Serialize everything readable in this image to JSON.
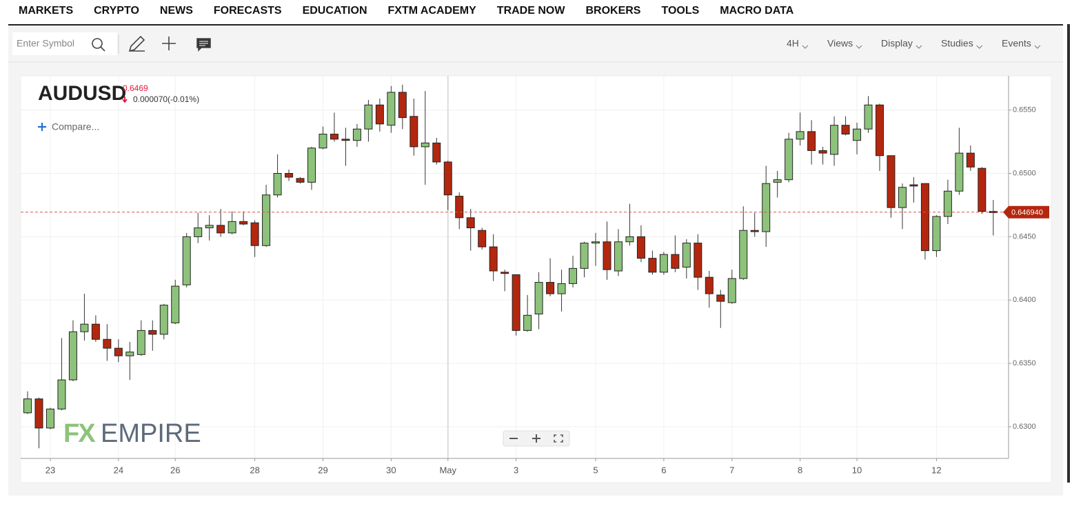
{
  "nav": {
    "items": [
      "MARKETS",
      "CRYPTO",
      "NEWS",
      "FORECASTS",
      "EDUCATION",
      "FXTM ACADEMY",
      "TRADE NOW",
      "BROKERS",
      "TOOLS",
      "MACRO DATA"
    ]
  },
  "toolbar": {
    "symbol_placeholder": "Enter Symbol",
    "menus": [
      "4H",
      "Views",
      "Display",
      "Studies",
      "Events"
    ]
  },
  "chart_data": {
    "type": "candlestick",
    "symbol": "AUDUSD",
    "price": "0.6469",
    "change": "0.000070(-0.01%)",
    "compare": "Compare...",
    "watermark": [
      "FX",
      "EMPIRE"
    ],
    "categories": [
      null,
      null,
      "23",
      null,
      null,
      null,
      null,
      null,
      "24",
      null,
      null,
      null,
      null,
      "26",
      null,
      null,
      null,
      null,
      null,
      null,
      "28",
      null,
      null,
      null,
      null,
      null,
      "29",
      null,
      null,
      null,
      null,
      null,
      "30",
      null,
      null,
      null,
      null,
      "May",
      null,
      null,
      null,
      null,
      null,
      "3",
      null,
      null,
      null,
      null,
      null,
      null,
      "5",
      null,
      null,
      null,
      null,
      null,
      "6",
      null,
      null,
      null,
      null,
      null,
      "7",
      null,
      null,
      null,
      null,
      null,
      "8",
      null,
      null,
      null,
      null,
      "10",
      null,
      null,
      null,
      null,
      null,
      null,
      "12",
      null,
      null,
      null,
      null,
      null
    ],
    "open": [
      0.6311,
      0.6322,
      0.6299,
      0.6314,
      0.6337,
      0.6375,
      0.6381,
      0.6369,
      0.6362,
      0.6356,
      0.6357,
      0.6376,
      0.6373,
      0.6382,
      0.6412,
      0.645,
      0.6457,
      0.6459,
      0.6453,
      0.6462,
      0.6461,
      0.6443,
      0.6483,
      0.65,
      0.6496,
      0.6493,
      0.652,
      0.6531,
      0.6527,
      0.6526,
      0.6535,
      0.6554,
      0.6538,
      0.6564,
      0.6545,
      0.6521,
      0.6524,
      0.6509,
      0.6482,
      0.6465,
      0.6455,
      0.6442,
      0.6422,
      0.642,
      0.6376,
      0.6389,
      0.6414,
      0.6405,
      0.6413,
      0.6425,
      0.6445,
      0.6446,
      0.6423,
      0.6446,
      0.645,
      0.6433,
      0.6422,
      0.6436,
      0.6426,
      0.6445,
      0.6418,
      0.6404,
      0.6398,
      0.6417,
      0.6455,
      0.6454,
      0.6493,
      0.6495,
      0.6527,
      0.6533,
      0.6518,
      0.6515,
      0.6538,
      0.6526,
      0.6535,
      0.6554,
      0.6514,
      0.6473,
      0.6491,
      0.6492,
      0.6439,
      0.6466,
      0.6486,
      0.6516,
      0.6504,
      0.647
    ],
    "high": [
      0.6328,
      0.6323,
      0.6315,
      0.637,
      0.6384,
      0.6405,
      0.6388,
      0.6381,
      0.6369,
      0.6367,
      0.6384,
      0.6384,
      0.6397,
      0.6416,
      0.6453,
      0.6469,
      0.6467,
      0.6472,
      0.647,
      0.647,
      0.6463,
      0.6491,
      0.6515,
      0.6503,
      0.6497,
      0.6521,
      0.6537,
      0.6548,
      0.6536,
      0.6539,
      0.6558,
      0.6559,
      0.6569,
      0.657,
      0.6559,
      0.6565,
      0.6528,
      0.651,
      0.6485,
      0.6472,
      0.6457,
      0.6452,
      0.6424,
      0.642,
      0.6404,
      0.6422,
      0.6433,
      0.6424,
      0.6435,
      0.6446,
      0.6453,
      0.6462,
      0.6456,
      0.6476,
      0.6459,
      0.6439,
      0.6438,
      0.6451,
      0.6448,
      0.6452,
      0.6423,
      0.6408,
      0.6424,
      0.6474,
      0.6469,
      0.6506,
      0.6502,
      0.6532,
      0.6548,
      0.6542,
      0.6521,
      0.6545,
      0.6545,
      0.654,
      0.6561,
      0.6555,
      0.6514,
      0.6492,
      0.6497,
      0.6492,
      0.6467,
      0.6495,
      0.6536,
      0.6522,
      0.6505,
      0.6479
    ],
    "low": [
      0.631,
      0.6283,
      0.6298,
      0.6313,
      0.6336,
      0.6368,
      0.6367,
      0.6352,
      0.6351,
      0.6337,
      0.6356,
      0.636,
      0.6369,
      0.6381,
      0.641,
      0.6445,
      0.6447,
      0.645,
      0.6452,
      0.6459,
      0.6434,
      0.6442,
      0.6481,
      0.6494,
      0.6492,
      0.6487,
      0.6519,
      0.6525,
      0.6506,
      0.6521,
      0.6525,
      0.6533,
      0.6532,
      0.6535,
      0.6514,
      0.6491,
      0.6507,
      0.6471,
      0.6456,
      0.6439,
      0.644,
      0.6415,
      0.6407,
      0.6372,
      0.6375,
      0.6377,
      0.6403,
      0.6391,
      0.641,
      0.6418,
      0.6427,
      0.6416,
      0.6419,
      0.6443,
      0.643,
      0.642,
      0.642,
      0.6422,
      0.6417,
      0.6408,
      0.6394,
      0.6378,
      0.6397,
      0.6416,
      0.645,
      0.6442,
      0.6481,
      0.6493,
      0.6522,
      0.6507,
      0.6507,
      0.6506,
      0.653,
      0.6515,
      0.6532,
      0.6502,
      0.6465,
      0.6456,
      0.6477,
      0.6432,
      0.6434,
      0.646,
      0.6483,
      0.6502,
      0.6468,
      0.6451
    ],
    "close": [
      0.6322,
      0.6299,
      0.6314,
      0.6337,
      0.6375,
      0.6381,
      0.6369,
      0.6362,
      0.6356,
      0.6359,
      0.6376,
      0.6373,
      0.6396,
      0.6411,
      0.645,
      0.6457,
      0.6459,
      0.6453,
      0.6462,
      0.646,
      0.6443,
      0.6483,
      0.65,
      0.6497,
      0.6493,
      0.652,
      0.6531,
      0.6527,
      0.6526,
      0.6535,
      0.6554,
      0.6539,
      0.6564,
      0.6544,
      0.6521,
      0.6524,
      0.6509,
      0.6483,
      0.6465,
      0.6457,
      0.6442,
      0.6423,
      0.6421,
      0.6376,
      0.6388,
      0.6414,
      0.6405,
      0.6413,
      0.6425,
      0.6445,
      0.6446,
      0.6424,
      0.6446,
      0.645,
      0.6433,
      0.6422,
      0.6436,
      0.6425,
      0.6445,
      0.6418,
      0.6405,
      0.6399,
      0.6417,
      0.6455,
      0.6454,
      0.6492,
      0.6495,
      0.6527,
      0.6533,
      0.6518,
      0.6516,
      0.6538,
      0.6531,
      0.6535,
      0.6554,
      0.6514,
      0.6473,
      0.6489,
      0.649,
      0.6439,
      0.6466,
      0.6486,
      0.6516,
      0.6505,
      0.647,
      0.6469
    ],
    "up_color": "#8dc27b",
    "down_color": "#b4270f",
    "ylim": [
      0.6275,
      0.6577
    ],
    "yticks": [
      {
        "value": 0.63,
        "label": "0.6300"
      },
      {
        "value": 0.635,
        "label": "0.6350"
      },
      {
        "value": 0.64,
        "label": "0.6400"
      },
      {
        "value": 0.645,
        "label": "0.6450"
      },
      {
        "value": 0.65,
        "label": "0.6500"
      },
      {
        "value": 0.655,
        "label": "0.6550"
      }
    ],
    "last_price": {
      "value": 0.64694,
      "label": "0.646940"
    },
    "grid": true
  }
}
